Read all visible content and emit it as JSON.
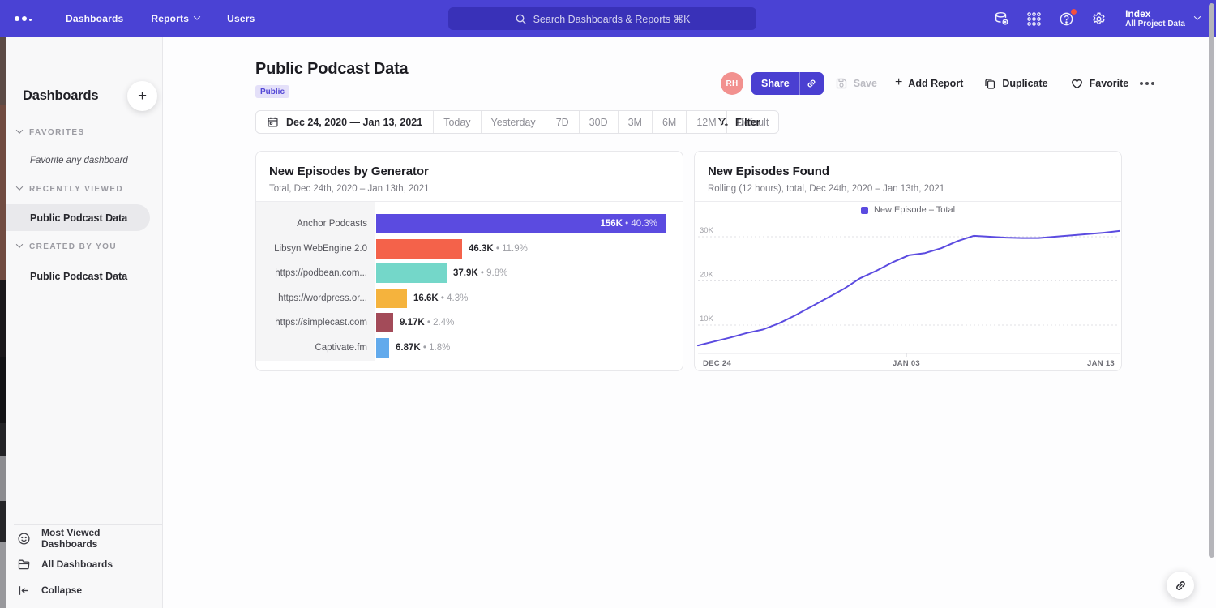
{
  "topnav": {
    "items": [
      {
        "label": "Dashboards"
      },
      {
        "label": "Reports"
      },
      {
        "label": "Users"
      }
    ],
    "search_placeholder": "Search Dashboards & Reports ⌘K",
    "icons": [
      "data-sources-icon",
      "apps-grid-icon",
      "help-icon",
      "settings-icon"
    ],
    "project": {
      "name": "Index",
      "scope": "All Project Data"
    },
    "accent_color": "#4a42d4"
  },
  "sidebar": {
    "title": "Dashboards",
    "add_button": "+",
    "sections": [
      {
        "label": "FAVORITES",
        "empty_text": "Favorite any dashboard"
      },
      {
        "label": "RECENTLY VIEWED",
        "items": [
          {
            "label": "Public Podcast Data",
            "selected": true
          }
        ]
      },
      {
        "label": "CREATED BY YOU",
        "items": [
          {
            "label": "Public Podcast Data",
            "selected": false
          }
        ]
      }
    ],
    "footer": [
      {
        "label": "Most Viewed Dashboards",
        "icon": "smiley-icon"
      },
      {
        "label": "All Dashboards",
        "icon": "folder-icon"
      },
      {
        "label": "Collapse",
        "icon": "collapse-icon"
      }
    ]
  },
  "header": {
    "title": "Public Podcast Data",
    "badge": "Public",
    "avatar_initials": "RH",
    "share_label": "Share",
    "save_label": "Save",
    "add_report_label": "Add Report",
    "duplicate_label": "Duplicate",
    "favorite_label": "Favorite"
  },
  "datebar": {
    "range": "Dec 24, 2020 — Jan 13, 2021",
    "presets": [
      "Today",
      "Yesterday",
      "7D",
      "30D",
      "3M",
      "6M",
      "12M",
      "Default"
    ],
    "filter_label": "Filter"
  },
  "chart_data": [
    {
      "type": "bar",
      "orientation": "horizontal",
      "title": "New Episodes by Generator",
      "subtitle": "Total, Dec 24th, 2020 – Jan 13th, 2021",
      "categories": [
        "Anchor Podcasts",
        "Libsyn WebEngine 2.0",
        "https://podbean.com...",
        "https://wordpress.or...",
        "https://simplecast.com",
        "Captivate.fm"
      ],
      "values": [
        156000,
        46300,
        37900,
        16600,
        9170,
        6870
      ],
      "value_labels": [
        "156K",
        "46.3K",
        "37.9K",
        "16.6K",
        "9.17K",
        "6.87K"
      ],
      "percent_labels": [
        "40.3%",
        "11.9%",
        "9.8%",
        "4.3%",
        "2.4%",
        "1.8%"
      ],
      "bar_colors": [
        "#5b4be0",
        "#f4624a",
        "#74d7c9",
        "#f5b33d",
        "#a34b59",
        "#62aaec"
      ],
      "xmax": 156000,
      "grid": false
    },
    {
      "type": "line",
      "title": "New Episodes Found",
      "subtitle": "Rolling (12 hours), total, Dec 24th, 2020 – Jan 13th, 2021",
      "legend": [
        "New Episode – Total"
      ],
      "line_color": "#5b4be0",
      "y_ticks": [
        10000,
        20000,
        30000
      ],
      "y_tick_labels": [
        "10K",
        "20K",
        "30K"
      ],
      "x_tick_labels": [
        "DEC 24",
        "JAN 03",
        "JAN 13"
      ],
      "ylim": [
        3580,
        33850
      ],
      "grid": "dashed-horizontal",
      "legend_position": "top-center",
      "values": [
        5400,
        6300,
        7200,
        8200,
        9000,
        10400,
        12200,
        14200,
        16200,
        18200,
        20600,
        22300,
        24200,
        25800,
        26300,
        27400,
        29000,
        30200,
        30000,
        29800,
        29700,
        29700,
        30000,
        30300,
        30600,
        30900,
        31300
      ]
    }
  ],
  "floating": {
    "link_button_icon": "link-icon"
  }
}
